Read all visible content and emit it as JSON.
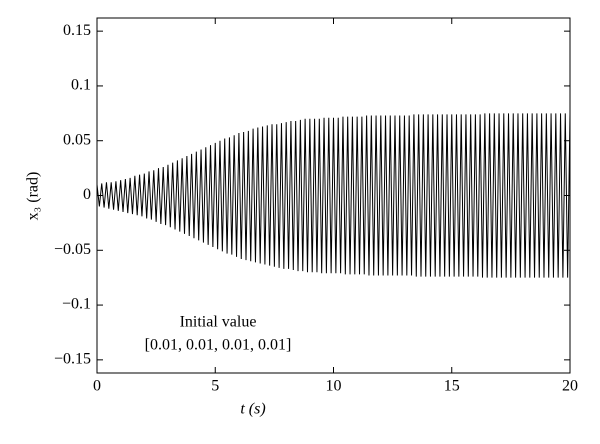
{
  "chart_data": {
    "type": "line",
    "xlabel": "t (s)",
    "ylabel": "x₃ (rad)",
    "annotations": [
      "Initial value",
      "[0.01, 0.01, 0.01, 0.01]"
    ],
    "xlim": [
      0,
      20
    ],
    "ylim": [
      -0.162,
      0.162
    ],
    "xticks": [
      0,
      5,
      10,
      15,
      20
    ],
    "yticks": [
      {
        "value": -0.15,
        "label": "−0.15"
      },
      {
        "value": -0.1,
        "label": "−0.1"
      },
      {
        "value": -0.05,
        "label": "−0.05"
      },
      0,
      0.05,
      0.1,
      0.15
    ],
    "x": [
      0,
      0.1,
      0.2,
      0.3,
      0.4,
      0.5,
      0.6,
      0.7,
      0.8,
      0.9,
      1,
      1.1,
      1.2,
      1.3,
      1.4,
      1.5,
      1.6,
      1.7,
      1.8,
      1.9,
      2,
      2.1,
      2.2,
      2.3,
      2.4,
      2.5,
      2.6,
      2.7,
      2.8,
      2.9,
      3,
      3.1,
      3.2,
      3.3,
      3.4,
      3.5,
      3.6,
      3.7,
      3.8,
      3.9,
      4,
      4.1,
      4.2,
      4.3,
      4.4,
      4.5,
      4.6,
      4.7,
      4.8,
      4.9,
      5,
      5.1,
      5.2,
      5.3,
      5.4,
      5.5,
      5.6,
      5.7,
      5.8,
      5.9,
      6,
      6.1,
      6.2,
      6.3,
      6.4,
      6.5,
      6.6,
      6.7,
      6.8,
      6.9,
      7,
      7.1,
      7.2,
      7.3,
      7.4,
      7.5,
      7.6,
      7.7,
      7.8,
      7.9,
      8,
      8.1,
      8.2,
      8.3,
      8.4,
      8.5,
      8.6,
      8.7,
      8.8,
      8.9,
      9,
      9.1,
      9.2,
      9.3,
      9.4,
      9.5,
      9.6,
      9.7,
      9.8,
      9.9,
      10,
      10.1,
      10.2,
      10.3,
      10.4,
      10.5,
      10.6,
      10.7,
      10.8,
      10.9,
      11,
      11.1,
      11.2,
      11.3,
      11.4,
      11.5,
      11.6,
      11.7,
      11.8,
      11.9,
      12,
      12.1,
      12.2,
      12.3,
      12.4,
      12.5,
      12.6,
      12.7,
      12.8,
      12.9,
      13,
      13.1,
      13.2,
      13.3,
      13.4,
      13.5,
      13.6,
      13.7,
      13.8,
      13.9,
      14,
      14.1,
      14.2,
      14.3,
      14.4,
      14.5,
      14.6,
      14.7,
      14.8,
      14.9,
      15,
      15.1,
      15.2,
      15.3,
      15.4,
      15.5,
      15.6,
      15.7,
      15.8,
      15.9,
      16,
      16.1,
      16.2,
      16.3,
      16.4,
      16.5,
      16.6,
      16.7,
      16.8,
      16.9,
      17,
      17.1,
      17.2,
      17.3,
      17.4,
      17.5,
      17.6,
      17.7,
      17.8,
      17.9,
      18,
      18.1,
      18.2,
      18.3,
      18.4,
      18.5,
      18.6,
      18.7,
      18.8,
      18.9,
      19,
      19.1,
      19.2,
      19.3,
      19.4,
      19.5,
      19.6,
      19.7,
      19.8,
      19.9,
      20
    ],
    "series": [
      {
        "color": "#000000",
        "values": [
          0.01,
          -0.01,
          0.011,
          -0.011,
          0.012,
          -0.012,
          0.012,
          -0.013,
          0.013,
          -0.014,
          0.014,
          -0.015,
          0.015,
          -0.016,
          0.016,
          -0.017,
          0.018,
          -0.018,
          0.019,
          -0.019,
          0.02,
          -0.021,
          0.022,
          -0.022,
          0.023,
          -0.024,
          0.025,
          -0.026,
          0.026,
          -0.027,
          0.028,
          -0.029,
          0.03,
          -0.031,
          0.032,
          -0.033,
          0.034,
          -0.035,
          0.036,
          -0.037,
          0.038,
          -0.039,
          0.04,
          -0.041,
          0.042,
          -0.043,
          0.044,
          -0.045,
          0.046,
          -0.047,
          0.048,
          -0.049,
          0.05,
          -0.051,
          0.052,
          -0.053,
          0.053,
          -0.054,
          0.055,
          -0.056,
          0.057,
          -0.058,
          0.058,
          -0.059,
          0.059,
          -0.06,
          0.061,
          -0.061,
          0.062,
          -0.062,
          0.063,
          -0.063,
          0.064,
          -0.064,
          0.065,
          -0.065,
          0.065,
          -0.066,
          0.066,
          -0.067,
          0.067,
          -0.067,
          0.068,
          -0.068,
          0.068,
          -0.069,
          0.069,
          -0.069,
          0.07,
          -0.07,
          0.07,
          -0.07,
          0.07,
          -0.07,
          0.07,
          -0.071,
          0.071,
          -0.071,
          0.071,
          -0.071,
          0.071,
          -0.071,
          0.071,
          -0.071,
          0.072,
          -0.072,
          0.072,
          -0.072,
          0.072,
          -0.072,
          0.072,
          -0.072,
          0.072,
          -0.072,
          0.073,
          -0.073,
          0.073,
          -0.073,
          0.073,
          -0.073,
          0.073,
          -0.073,
          0.073,
          -0.073,
          0.073,
          -0.073,
          0.073,
          -0.073,
          0.073,
          -0.073,
          0.073,
          -0.073,
          0.073,
          -0.073,
          0.074,
          -0.074,
          0.074,
          -0.074,
          0.074,
          -0.074,
          0.074,
          -0.074,
          0.074,
          -0.074,
          0.074,
          -0.074,
          0.074,
          -0.074,
          0.074,
          -0.074,
          0.074,
          -0.074,
          0.074,
          -0.074,
          0.074,
          -0.074,
          0.074,
          -0.074,
          0.074,
          -0.074,
          0.074,
          -0.074,
          0.074,
          -0.075,
          0.075,
          -0.075,
          0.075,
          -0.075,
          0.075,
          -0.075,
          0.075,
          -0.075,
          0.075,
          -0.075,
          0.075,
          -0.075,
          0.075,
          -0.075,
          0.075,
          -0.075,
          0.075,
          -0.075,
          0.075,
          -0.075,
          0.075,
          -0.075,
          0.075,
          -0.075,
          0.075,
          -0.075,
          0.075,
          -0.075,
          0.075,
          -0.075,
          0.075,
          -0.075,
          0.075,
          -0.075,
          0.075,
          -0.075,
          0.075
        ]
      }
    ]
  }
}
